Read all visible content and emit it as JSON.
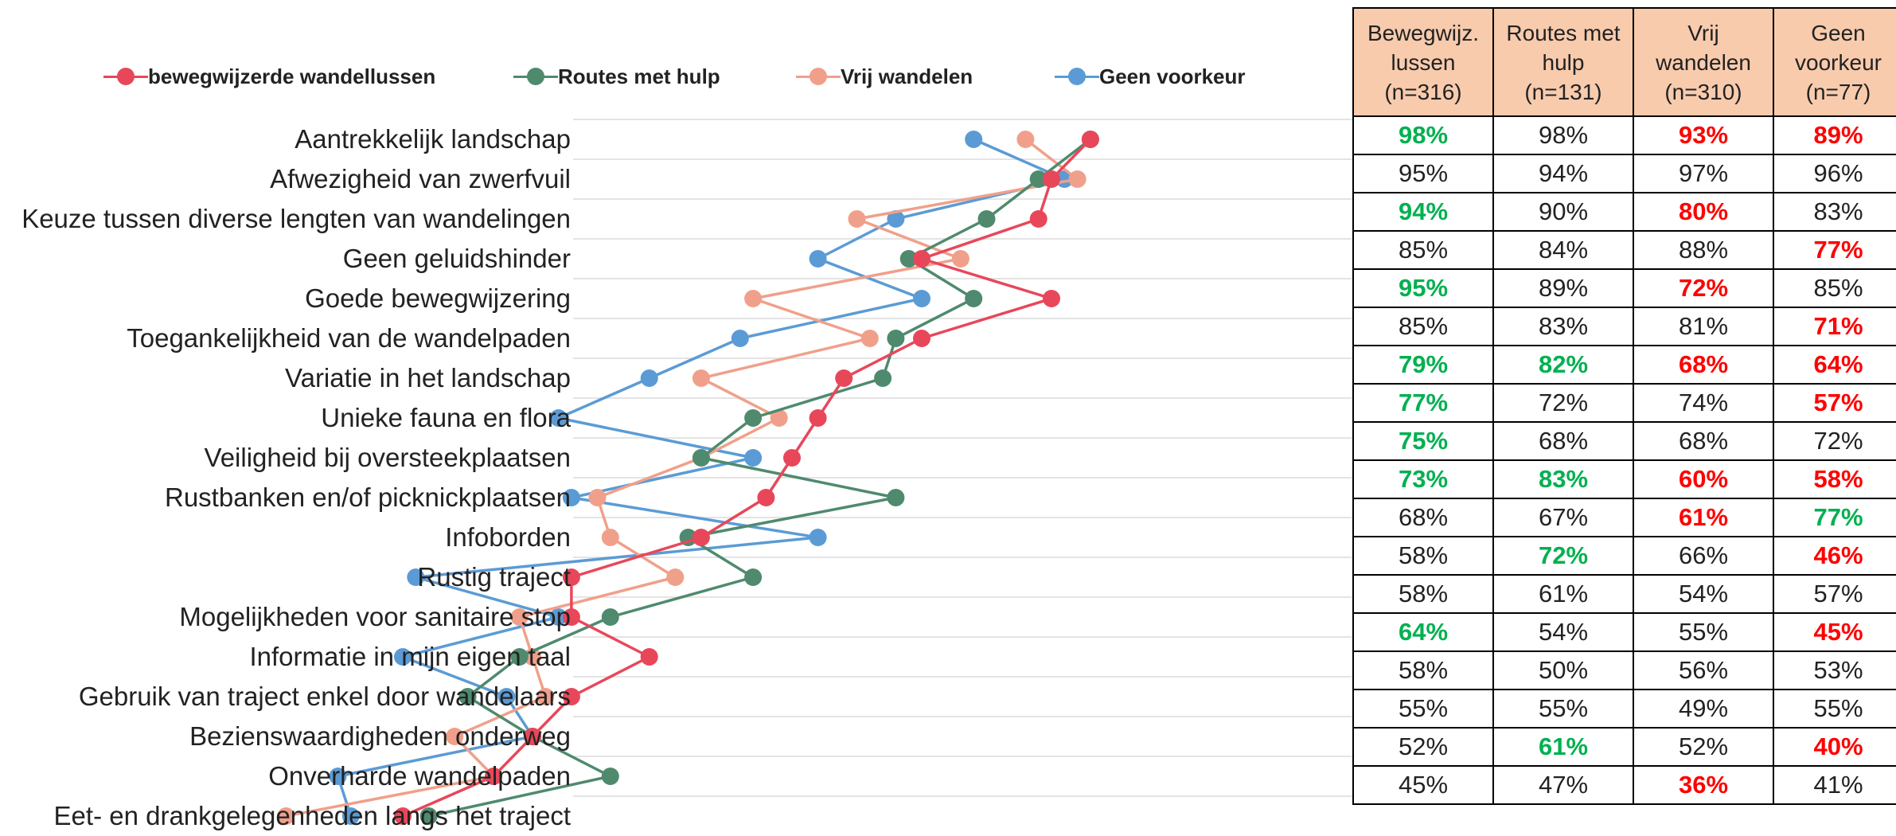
{
  "title": "",
  "colors": {
    "bewegwijzerde": "#e8475a",
    "routes": "#4f8a6e",
    "vrij": "#f0a08a",
    "geen": "#5b9bd5",
    "header_fill": "#f8cbad",
    "green_text": "#00b050",
    "red_text": "#ff0000"
  },
  "legend": [
    {
      "label": "bewegwijzerde wandellussen",
      "color": "#e8475a"
    },
    {
      "label": "Routes met hulp",
      "color": "#4f8a6e"
    },
    {
      "label": "Vrij wandelen",
      "color": "#f0a08a"
    },
    {
      "label": "Geen voorkeur",
      "color": "#5b9bd5"
    }
  ],
  "table": {
    "headers": [
      [
        "Bewegwijz.",
        "lussen",
        "(n=316)"
      ],
      [
        "Routes met",
        "hulp",
        "(n=131)"
      ],
      [
        "Vrij",
        "wandelen",
        "(n=310)"
      ],
      [
        "Geen",
        "voorkeur",
        "(n=77)"
      ]
    ],
    "rows": [
      [
        {
          "v": "98%",
          "s": "green"
        },
        {
          "v": "98%",
          "s": ""
        },
        {
          "v": "93%",
          "s": "red"
        },
        {
          "v": "89%",
          "s": "red"
        }
      ],
      [
        {
          "v": "95%",
          "s": ""
        },
        {
          "v": "94%",
          "s": ""
        },
        {
          "v": "97%",
          "s": ""
        },
        {
          "v": "96%",
          "s": ""
        }
      ],
      [
        {
          "v": "94%",
          "s": "green"
        },
        {
          "v": "90%",
          "s": ""
        },
        {
          "v": "80%",
          "s": "red"
        },
        {
          "v": "83%",
          "s": ""
        }
      ],
      [
        {
          "v": "85%",
          "s": ""
        },
        {
          "v": "84%",
          "s": ""
        },
        {
          "v": "88%",
          "s": ""
        },
        {
          "v": "77%",
          "s": "red"
        }
      ],
      [
        {
          "v": "95%",
          "s": "green"
        },
        {
          "v": "89%",
          "s": ""
        },
        {
          "v": "72%",
          "s": "red"
        },
        {
          "v": "85%",
          "s": ""
        }
      ],
      [
        {
          "v": "85%",
          "s": ""
        },
        {
          "v": "83%",
          "s": ""
        },
        {
          "v": "81%",
          "s": ""
        },
        {
          "v": "71%",
          "s": "red"
        }
      ],
      [
        {
          "v": "79%",
          "s": "green"
        },
        {
          "v": "82%",
          "s": "green"
        },
        {
          "v": "68%",
          "s": "red"
        },
        {
          "v": "64%",
          "s": "red"
        }
      ],
      [
        {
          "v": "77%",
          "s": "green"
        },
        {
          "v": "72%",
          "s": ""
        },
        {
          "v": "74%",
          "s": ""
        },
        {
          "v": "57%",
          "s": "red"
        }
      ],
      [
        {
          "v": "75%",
          "s": "green"
        },
        {
          "v": "68%",
          "s": ""
        },
        {
          "v": "68%",
          "s": ""
        },
        {
          "v": "72%",
          "s": ""
        }
      ],
      [
        {
          "v": "73%",
          "s": "green"
        },
        {
          "v": "83%",
          "s": "green"
        },
        {
          "v": "60%",
          "s": "red"
        },
        {
          "v": "58%",
          "s": "red"
        }
      ],
      [
        {
          "v": "68%",
          "s": ""
        },
        {
          "v": "67%",
          "s": ""
        },
        {
          "v": "61%",
          "s": "red"
        },
        {
          "v": "77%",
          "s": "green"
        }
      ],
      [
        {
          "v": "58%",
          "s": ""
        },
        {
          "v": "72%",
          "s": "green"
        },
        {
          "v": "66%",
          "s": ""
        },
        {
          "v": "46%",
          "s": "red"
        }
      ],
      [
        {
          "v": "58%",
          "s": ""
        },
        {
          "v": "61%",
          "s": ""
        },
        {
          "v": "54%",
          "s": ""
        },
        {
          "v": "57%",
          "s": ""
        }
      ],
      [
        {
          "v": "64%",
          "s": "green"
        },
        {
          "v": "54%",
          "s": ""
        },
        {
          "v": "55%",
          "s": ""
        },
        {
          "v": "45%",
          "s": "red"
        }
      ],
      [
        {
          "v": "58%",
          "s": ""
        },
        {
          "v": "50%",
          "s": ""
        },
        {
          "v": "56%",
          "s": ""
        },
        {
          "v": "53%",
          "s": ""
        }
      ],
      [
        {
          "v": "55%",
          "s": ""
        },
        {
          "v": "55%",
          "s": ""
        },
        {
          "v": "49%",
          "s": ""
        },
        {
          "v": "55%",
          "s": ""
        }
      ],
      [
        {
          "v": "52%",
          "s": ""
        },
        {
          "v": "61%",
          "s": "green"
        },
        {
          "v": "52%",
          "s": ""
        },
        {
          "v": "40%",
          "s": "red"
        }
      ],
      [
        {
          "v": "45%",
          "s": ""
        },
        {
          "v": "47%",
          "s": ""
        },
        {
          "v": "36%",
          "s": "red"
        },
        {
          "v": "41%",
          "s": ""
        }
      ]
    ]
  },
  "chart_data": {
    "type": "line",
    "orientation": "horizontal",
    "categories": [
      "Aantrekkelijk landschap",
      "Afwezigheid van zwerfvuil",
      "Keuze tussen diverse lengten van wandelingen",
      "Geen geluidshinder",
      "Goede bewegwijzering",
      "Toegankelijkheid van de wandelpaden",
      "Variatie in het landschap",
      "Unieke fauna en flora",
      "Veiligheid bij oversteekplaatsen",
      "Rustbanken en/of picknickplaatsen",
      "Infoborden",
      "Rustig traject",
      "Mogelijkheden voor sanitaire stop",
      "Informatie in mijn eigen taal",
      "Gebruik van traject enkel door wandelaars",
      "Bezienswaardigheden onderweg",
      "Onverharde wandelpaden",
      "Eet- en drankgelegenheden langs het traject"
    ],
    "series": [
      {
        "name": "bewegwijzerde wandellussen",
        "color": "#e8475a",
        "values": [
          98,
          95,
          94,
          85,
          95,
          85,
          79,
          77,
          75,
          73,
          68,
          58,
          58,
          64,
          58,
          55,
          52,
          45
        ]
      },
      {
        "name": "Routes met hulp",
        "color": "#4f8a6e",
        "values": [
          98,
          94,
          90,
          84,
          89,
          83,
          82,
          72,
          68,
          83,
          67,
          72,
          61,
          54,
          50,
          55,
          61,
          47
        ]
      },
      {
        "name": "Vrij wandelen",
        "color": "#f0a08a",
        "values": [
          93,
          97,
          80,
          88,
          72,
          81,
          68,
          74,
          68,
          60,
          61,
          66,
          54,
          55,
          56,
          49,
          52,
          36
        ]
      },
      {
        "name": "Geen voorkeur",
        "color": "#5b9bd5",
        "values": [
          89,
          96,
          83,
          77,
          85,
          71,
          64,
          57,
          72,
          58,
          77,
          46,
          57,
          45,
          53,
          55,
          40,
          41
        ]
      }
    ],
    "xlim": [
      30,
      100
    ],
    "xlabel": "",
    "ylabel": "",
    "grid": "horizontal",
    "legend_position": "top"
  }
}
